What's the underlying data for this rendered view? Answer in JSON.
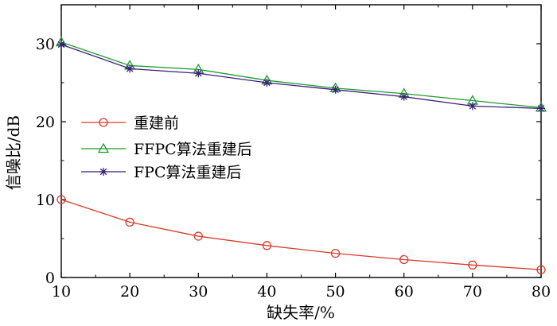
{
  "chart_data": {
    "type": "line",
    "xlabel": "缺失率/%",
    "ylabel": "信噪比/dB",
    "x": [
      10,
      20,
      30,
      40,
      50,
      60,
      70,
      80
    ],
    "xlim": [
      10,
      80
    ],
    "ylim": [
      0,
      35
    ],
    "xticks": [
      "10",
      "20",
      "30",
      "40",
      "50",
      "60",
      "70",
      "80"
    ],
    "yticks": [
      "0",
      "10",
      "20",
      "30"
    ],
    "grid": false,
    "legend_position": "center-left",
    "series": [
      {
        "name": "重建前",
        "values": [
          10.0,
          7.1,
          5.3,
          4.1,
          3.1,
          2.3,
          1.6,
          1.0
        ],
        "color": "#d93a2b",
        "marker": "circle"
      },
      {
        "name": "FFPC算法重建后",
        "values": [
          30.2,
          27.2,
          26.7,
          25.3,
          24.3,
          23.6,
          22.7,
          21.8
        ],
        "color": "#1e9a2f",
        "marker": "triangle"
      },
      {
        "name": "FPC算法重建后",
        "values": [
          29.9,
          26.8,
          26.2,
          25.0,
          24.1,
          23.2,
          22.0,
          21.7
        ],
        "color": "#3b1f7a",
        "marker": "star"
      }
    ]
  }
}
